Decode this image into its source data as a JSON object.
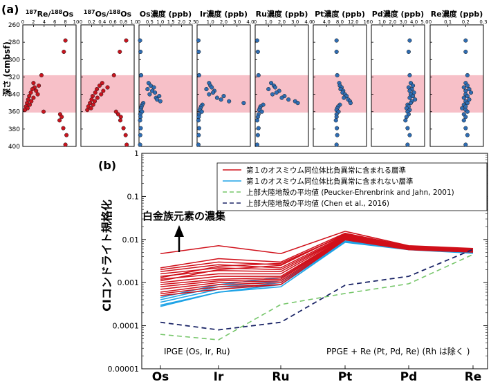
{
  "panel_a_label": "(a)",
  "panel_b_label": "(b)",
  "colors": {
    "red": "#d0101a",
    "cyan": "#1ea3e6",
    "green_dash": "#76c66a",
    "navy_dash": "#1a2466",
    "band": "#f7c0c8",
    "dot_red": "#c8141e",
    "dot_blue": "#2f6db3"
  },
  "chart_data": [
    {
      "type": "scatter",
      "panel": "a",
      "ylabel": "深さ (cmbsf)",
      "ylim": [
        260,
        400
      ],
      "y_ticks": [
        "260",
        "280",
        "300",
        "320",
        "340",
        "360",
        "380",
        "400"
      ],
      "highlight_band": [
        318,
        361
      ],
      "depths": [
        278,
        291,
        318,
        327,
        330,
        332,
        334,
        336,
        338,
        340,
        342,
        344,
        346,
        348,
        350,
        352,
        354,
        356,
        358,
        360,
        363,
        366,
        370,
        379,
        387,
        398
      ],
      "subplots": [
        {
          "title_sup1": "187",
          "title_a": "Re/",
          "title_sup2": "188",
          "title_b": "Os",
          "xlim": [
            0,
            10
          ],
          "x_ticks": [
            "0",
            "2",
            "4",
            "6",
            "8",
            "10"
          ],
          "dot_color": "red",
          "values": [
            8.0,
            7.7,
            3.5,
            2.0,
            3.0,
            2.2,
            1.8,
            2.5,
            1.5,
            2.8,
            1.2,
            2.0,
            1.0,
            1.6,
            0.8,
            1.3,
            0.6,
            0.9,
            0.4,
            3.9,
            7.0,
            7.3,
            6.9,
            7.6,
            8.2,
            8.0
          ]
        },
        {
          "title_sup1": "187",
          "title_a": "Os/",
          "title_sup2": "188",
          "title_b": "Os",
          "xlim": [
            0,
            1.0
          ],
          "x_ticks": [
            "0",
            "0.2",
            "0.4",
            "0.6",
            "0.8",
            "1.0"
          ],
          "dot_color": "red",
          "values": [
            0.85,
            0.73,
            0.62,
            0.4,
            0.35,
            0.5,
            0.3,
            0.42,
            0.27,
            0.38,
            0.22,
            0.31,
            0.2,
            0.26,
            0.17,
            0.23,
            0.14,
            0.19,
            0.12,
            0.66,
            0.7,
            0.75,
            0.74,
            0.8,
            0.84,
            0.86
          ]
        },
        {
          "title": "Os濃度 (ppb)",
          "xlim": [
            0,
            2.5
          ],
          "x_ticks": [
            "0",
            "0.5",
            "1.0",
            "1.5",
            "2.0",
            "2.5"
          ],
          "dot_color": "blue",
          "values": [
            0.05,
            0.07,
            0.1,
            0.45,
            0.55,
            0.7,
            0.4,
            0.62,
            0.75,
            0.5,
            0.95,
            0.8,
            0.85,
            1.0,
            0.2,
            0.15,
            0.12,
            0.1,
            0.08,
            0.14,
            0.06,
            0.07,
            0.05,
            0.08,
            0.06,
            0.05
          ]
        },
        {
          "title": "Ir濃度 (ppb)",
          "xlim": [
            0,
            4.0
          ],
          "x_ticks": [
            "0",
            "1.0",
            "2.0",
            "3.0",
            "4.0"
          ],
          "dot_color": "blue",
          "values": [
            0.1,
            0.12,
            0.15,
            0.9,
            1.0,
            1.1,
            0.7,
            1.3,
            1.2,
            0.9,
            2.0,
            1.5,
            1.8,
            2.4,
            3.5,
            0.4,
            0.3,
            0.25,
            0.2,
            0.35,
            0.15,
            0.12,
            0.1,
            0.15,
            0.12,
            0.1
          ]
        },
        {
          "title": "Ru濃度 (ppb)",
          "xlim": [
            0,
            4.0
          ],
          "x_ticks": [
            "0",
            "1.0",
            "2.0",
            "3.0",
            "4.0"
          ],
          "dot_color": "blue",
          "values": [
            0.15,
            0.2,
            0.25,
            1.2,
            1.4,
            1.5,
            1.0,
            1.8,
            1.6,
            1.3,
            2.2,
            2.0,
            2.5,
            3.0,
            3.2,
            0.6,
            0.4,
            0.35,
            0.3,
            0.5,
            0.25,
            0.2,
            0.15,
            0.25,
            0.2,
            0.15
          ]
        },
        {
          "title": "Pt濃度 (ppb)",
          "xlim": [
            0,
            16
          ],
          "x_ticks": [
            "0",
            "4.0",
            "8.0",
            "12.0",
            "16"
          ],
          "dot_color": "blue",
          "values": [
            7.0,
            7.0,
            7.2,
            7.8,
            8.0,
            8.5,
            8.2,
            9.0,
            8.8,
            9.5,
            10.0,
            9.2,
            10.5,
            11.0,
            11.2,
            8.0,
            7.5,
            7.2,
            7.0,
            7.6,
            7.0,
            7.0,
            6.8,
            7.1,
            7.2,
            7.0
          ]
        },
        {
          "title": "Pd濃度 (ppb)",
          "xlim": [
            0,
            5.0
          ],
          "x_ticks": [
            "0",
            "1.0",
            "2.0",
            "3.0",
            "4.0",
            "5.0"
          ],
          "dot_color": "blue",
          "values": [
            3.6,
            3.5,
            3.6,
            3.7,
            3.9,
            3.5,
            3.8,
            3.6,
            4.0,
            3.7,
            3.9,
            3.6,
            4.1,
            3.8,
            3.7,
            3.4,
            3.5,
            3.3,
            3.6,
            3.4,
            3.5,
            3.3,
            3.2,
            3.4,
            3.6,
            3.4
          ]
        },
        {
          "title": "Re濃度 (ppb)",
          "xlim": [
            0,
            0.3
          ],
          "x_ticks": [
            "0",
            "0.1",
            "0.2",
            "0.3"
          ],
          "dot_color": "blue",
          "values": [
            0.2,
            0.2,
            0.21,
            0.2,
            0.21,
            0.19,
            0.22,
            0.2,
            0.23,
            0.2,
            0.21,
            0.19,
            0.22,
            0.2,
            0.21,
            0.19,
            0.2,
            0.18,
            0.2,
            0.21,
            0.19,
            0.2,
            0.19,
            0.2,
            0.21,
            0.2
          ]
        }
      ]
    },
    {
      "type": "line",
      "panel": "b",
      "ylabel": "CIコンドライト規格化",
      "yscale": "log",
      "ylim": [
        1e-05,
        1
      ],
      "y_ticks": [
        "0.00001",
        "0.0001",
        "0.001",
        "0.01",
        "0.1",
        "1"
      ],
      "categories": [
        "Os",
        "Ir",
        "Ru",
        "Pt",
        "Pd",
        "Re"
      ],
      "legend": [
        {
          "label": "第１のオスミウム同位体比負異常に含まれる層準",
          "color": "red",
          "style": "solid"
        },
        {
          "label": "第１のオスミウム同位体比負異常に含まれない層準",
          "color": "cyan",
          "style": "solid"
        },
        {
          "label": "上部大陸地殻の平均値 (Peucker-Ehrenbrink and Jahn, 2001)",
          "color": "green_dash",
          "style": "dashed"
        },
        {
          "label": "上部大陸地殻の平均値 (Chen et al., 2016)",
          "color": "navy_dash",
          "style": "dashed"
        }
      ],
      "annotation_arrow": "白金族元素の濃集",
      "annotation_ipge": "IPGE (Os, Ir, Ru)",
      "annotation_ppge": "PPGE + Re (Pt, Pd, Re) (Rh は除く )",
      "series_red": [
        [
          0.0047,
          0.0072,
          0.0047,
          0.0155,
          0.0072,
          0.0062
        ],
        [
          0.0022,
          0.0036,
          0.003,
          0.014,
          0.007,
          0.006
        ],
        [
          0.002,
          0.003,
          0.0026,
          0.013,
          0.0068,
          0.0058
        ],
        [
          0.0018,
          0.0026,
          0.0022,
          0.0125,
          0.0066,
          0.0057
        ],
        [
          0.0016,
          0.0022,
          0.002,
          0.012,
          0.0065,
          0.0056
        ],
        [
          0.0014,
          0.0019,
          0.0018,
          0.0118,
          0.0064,
          0.0055
        ],
        [
          0.0012,
          0.0016,
          0.0016,
          0.0115,
          0.0063,
          0.0055
        ],
        [
          0.001,
          0.0014,
          0.0014,
          0.0112,
          0.0062,
          0.0054
        ],
        [
          0.0009,
          0.0012,
          0.0013,
          0.011,
          0.0061,
          0.0053
        ],
        [
          0.0008,
          0.0011,
          0.0012,
          0.0108,
          0.0061,
          0.0053
        ],
        [
          0.0007,
          0.001,
          0.0011,
          0.0105,
          0.006,
          0.0052
        ],
        [
          0.0006,
          0.0009,
          0.001,
          0.0102,
          0.0059,
          0.0052
        ],
        [
          0.00055,
          0.0008,
          0.0009,
          0.01,
          0.0058,
          0.0051
        ],
        [
          0.0005,
          0.0007,
          0.0009,
          0.0098,
          0.0058,
          0.0051
        ],
        [
          0.0011,
          0.002,
          0.0025,
          0.0135,
          0.0069,
          0.0059
        ],
        [
          0.0013,
          0.0024,
          0.0028,
          0.0128,
          0.0067,
          0.0058
        ]
      ],
      "series_cyan": [
        [
          0.00045,
          0.0009,
          0.0013,
          0.0092,
          0.0062,
          0.0052
        ],
        [
          0.0004,
          0.0008,
          0.0011,
          0.009,
          0.0061,
          0.0051
        ],
        [
          0.00035,
          0.0007,
          0.001,
          0.0088,
          0.006,
          0.005
        ],
        [
          0.0003,
          0.0006,
          0.0009,
          0.0087,
          0.0059,
          0.0049
        ],
        [
          0.00028,
          0.0006,
          0.0008,
          0.0086,
          0.0058,
          0.0048
        ]
      ],
      "series_green": [
        6.3e-05,
        4.7e-05,
        0.00031,
        0.00056,
        0.00094,
        0.0045
      ],
      "series_navy": [
        0.00012,
        8e-05,
        0.00012,
        0.00087,
        0.0014,
        0.0059
      ]
    }
  ]
}
